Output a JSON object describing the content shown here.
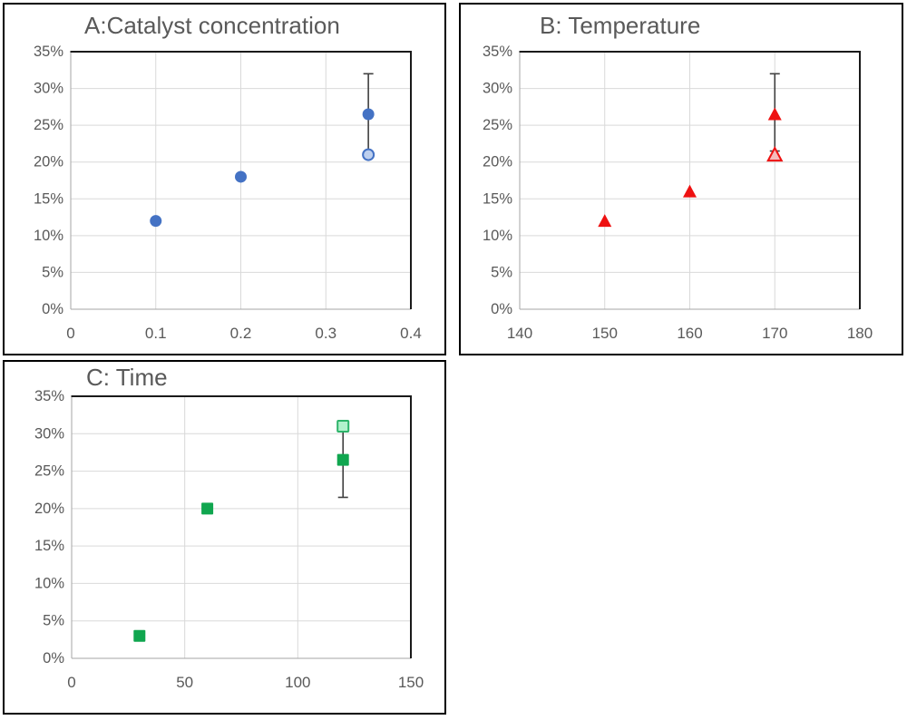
{
  "styles": {
    "title_color": "#595959",
    "tick_color": "#595959",
    "gridline_color": "#D9D9D9",
    "axis_color": "#A6A6A6",
    "plot_border_color": "#1a1a1a",
    "panel_border_color": "#000000",
    "error_bar_color": "#404040"
  },
  "chart_data": [
    {
      "id": "A",
      "type": "scatter",
      "title": "A:Catalyst concentration",
      "marker": "circle",
      "grid": true,
      "legend": "none",
      "x_range": [
        0,
        0.4
      ],
      "x_ticks": [
        0,
        0.1,
        0.2,
        0.3,
        0.4
      ],
      "x_tick_labels": [
        "0",
        "0.1",
        "0.2",
        "0.3",
        "0.4"
      ],
      "y_range": [
        0,
        0.35
      ],
      "y_ticks": [
        0,
        0.05,
        0.1,
        0.15,
        0.2,
        0.25,
        0.3,
        0.35
      ],
      "y_tick_labels": [
        "0%",
        "5%",
        "10%",
        "15%",
        "20%",
        "25%",
        "30%",
        "35%"
      ],
      "series": [
        {
          "name": "dark-points",
          "marker_fill": "#4472C4",
          "marker_stroke": "none",
          "points": [
            [
              0.1,
              0.12
            ],
            [
              0.2,
              0.18
            ],
            [
              0.35,
              0.265
            ]
          ]
        },
        {
          "name": "light-point",
          "marker_fill": "#BDCFEE",
          "marker_stroke": "#4472C4",
          "points": [
            [
              0.35,
              0.21
            ]
          ]
        }
      ],
      "error_bars": [
        {
          "x": 0.35,
          "from": 0.21,
          "to": 0.32
        }
      ]
    },
    {
      "id": "B",
      "type": "scatter",
      "title": "B: Temperature",
      "marker": "triangle",
      "grid": true,
      "legend": "none",
      "x_range": [
        140,
        180
      ],
      "x_ticks": [
        140,
        150,
        160,
        170,
        180
      ],
      "x_tick_labels": [
        "140",
        "150",
        "160",
        "170",
        "180"
      ],
      "y_range": [
        0,
        0.35
      ],
      "y_ticks": [
        0,
        0.05,
        0.1,
        0.15,
        0.2,
        0.25,
        0.3,
        0.35
      ],
      "y_tick_labels": [
        "0%",
        "5%",
        "10%",
        "15%",
        "20%",
        "25%",
        "30%",
        "35%"
      ],
      "series": [
        {
          "name": "dark-points",
          "marker_fill": "#EE1111",
          "marker_stroke": "none",
          "points": [
            [
              150,
              0.12
            ],
            [
              160,
              0.16
            ],
            [
              170,
              0.265
            ]
          ]
        },
        {
          "name": "light-point",
          "marker_fill": "#F5BCBC",
          "marker_stroke": "#EE1111",
          "points": [
            [
              170,
              0.21
            ]
          ]
        }
      ],
      "error_bars": [
        {
          "x": 170,
          "from": 0.215,
          "to": 0.32
        }
      ]
    },
    {
      "id": "C",
      "type": "scatter",
      "title": "C: Time",
      "marker": "square",
      "grid": true,
      "legend": "none",
      "x_range": [
        0,
        150
      ],
      "x_ticks": [
        0,
        50,
        100,
        150
      ],
      "x_tick_labels": [
        "0",
        "50",
        "100",
        "150"
      ],
      "y_range": [
        0,
        0.35
      ],
      "y_ticks": [
        0,
        0.05,
        0.1,
        0.15,
        0.2,
        0.25,
        0.3,
        0.35
      ],
      "y_tick_labels": [
        "0%",
        "5%",
        "10%",
        "15%",
        "20%",
        "25%",
        "30%",
        "35%"
      ],
      "series": [
        {
          "name": "dark-points",
          "marker_fill": "#10A64F",
          "marker_stroke": "none",
          "points": [
            [
              30,
              0.03
            ],
            [
              60,
              0.2
            ],
            [
              120,
              0.265
            ]
          ]
        },
        {
          "name": "light-point",
          "marker_fill": "#B2F2CD",
          "marker_stroke": "#2DB46A",
          "points": [
            [
              120,
              0.31
            ]
          ]
        }
      ],
      "error_bars": [
        {
          "x": 120,
          "from": 0.215,
          "to": 0.31
        }
      ]
    }
  ]
}
